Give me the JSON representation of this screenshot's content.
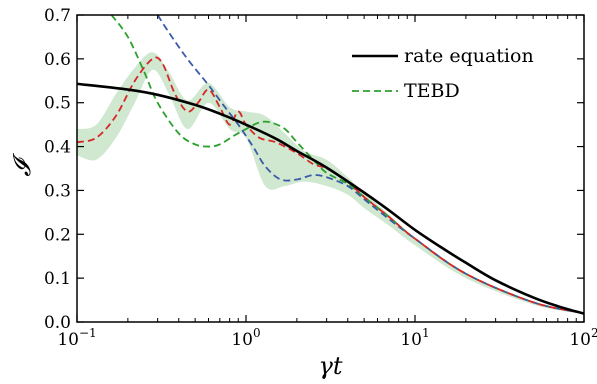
{
  "chart_data": {
    "type": "line",
    "xlabel": "γt",
    "ylabel": "𝓘",
    "xscale": "log",
    "xlim": [
      0.1,
      100
    ],
    "ylim": [
      0.0,
      0.7
    ],
    "xtick_labels": [
      {
        "base": "10",
        "exp": "−1",
        "value": 0.1
      },
      {
        "base": "10",
        "exp": "0",
        "value": 1
      },
      {
        "base": "10",
        "exp": "1",
        "value": 10
      },
      {
        "base": "10",
        "exp": "2",
        "value": 100
      }
    ],
    "yticks": [
      0.0,
      0.1,
      0.2,
      0.3,
      0.4,
      0.5,
      0.6,
      0.7
    ],
    "ytick_labels": [
      "0.0",
      "0.1",
      "0.2",
      "0.3",
      "0.4",
      "0.5",
      "0.6",
      "0.7"
    ],
    "legend": {
      "position": "top-right",
      "entries": [
        "rate equation",
        "TEBD"
      ]
    },
    "band": {
      "color": "#cfe8cf",
      "x": [
        0.1,
        0.13,
        0.17,
        0.22,
        0.28,
        0.35,
        0.45,
        0.6,
        0.8,
        1.0,
        1.3,
        1.7,
        2.2,
        3.0,
        4.0,
        5.0,
        7.0,
        10,
        20,
        50,
        100
      ],
      "upper": [
        0.44,
        0.45,
        0.52,
        0.58,
        0.615,
        0.57,
        0.505,
        0.545,
        0.49,
        0.48,
        0.47,
        0.43,
        0.39,
        0.37,
        0.33,
        0.295,
        0.245,
        0.19,
        0.11,
        0.045,
        0.022
      ],
      "lower": [
        0.38,
        0.37,
        0.42,
        0.5,
        0.575,
        0.52,
        0.44,
        0.5,
        0.44,
        0.42,
        0.31,
        0.31,
        0.32,
        0.31,
        0.29,
        0.26,
        0.22,
        0.175,
        0.1,
        0.04,
        0.018
      ]
    },
    "series": [
      {
        "name": "rate equation",
        "color": "#000000",
        "style": "solid",
        "x": [
          0.1,
          0.2,
          0.3,
          0.5,
          0.7,
          1.0,
          1.5,
          2.0,
          3.0,
          5.0,
          7.0,
          10,
          15,
          20,
          30,
          50,
          70,
          100
        ],
        "y": [
          0.543,
          0.53,
          0.518,
          0.495,
          0.475,
          0.45,
          0.418,
          0.39,
          0.352,
          0.295,
          0.255,
          0.21,
          0.165,
          0.135,
          0.095,
          0.056,
          0.036,
          0.019
        ]
      },
      {
        "color": "#d62728",
        "style": "dashed",
        "x": [
          0.1,
          0.13,
          0.17,
          0.22,
          0.28,
          0.32,
          0.38,
          0.45,
          0.52,
          0.6,
          0.7,
          0.8,
          0.9,
          1.0,
          1.2,
          1.5,
          2.0,
          2.5,
          3.0,
          4.0,
          5.0,
          7.0,
          10,
          20,
          50,
          100
        ],
        "y": [
          0.41,
          0.42,
          0.47,
          0.55,
          0.6,
          0.59,
          0.52,
          0.48,
          0.5,
          0.53,
          0.49,
          0.45,
          0.48,
          0.45,
          0.42,
          0.41,
          0.385,
          0.36,
          0.35,
          0.32,
          0.285,
          0.24,
          0.19,
          0.11,
          0.045,
          0.02
        ]
      },
      {
        "color": "#2ca02c",
        "style": "dashed",
        "x": [
          0.16,
          0.2,
          0.25,
          0.3,
          0.4,
          0.5,
          0.6,
          0.7,
          0.85,
          1.0,
          1.2,
          1.4,
          1.7,
          2.0,
          2.5,
          3.0,
          4.0,
          5.0,
          7.0,
          10,
          20,
          50,
          100
        ],
        "y": [
          0.7,
          0.65,
          0.57,
          0.5,
          0.43,
          0.405,
          0.4,
          0.405,
          0.425,
          0.44,
          0.455,
          0.455,
          0.44,
          0.41,
          0.37,
          0.34,
          0.315,
          0.285,
          0.24,
          0.19,
          0.11,
          0.045,
          0.02
        ]
      },
      {
        "color": "#3b5ba9",
        "style": "dashed",
        "x": [
          0.3,
          0.35,
          0.45,
          0.6,
          0.75,
          0.9,
          1.1,
          1.3,
          1.6,
          2.0,
          2.5,
          3.0,
          4.0,
          5.0,
          7.0,
          10,
          20,
          50,
          100
        ],
        "y": [
          0.7,
          0.66,
          0.6,
          0.54,
          0.49,
          0.45,
          0.4,
          0.355,
          0.325,
          0.325,
          0.335,
          0.33,
          0.31,
          0.28,
          0.235,
          0.19,
          0.11,
          0.045,
          0.02
        ]
      }
    ]
  }
}
